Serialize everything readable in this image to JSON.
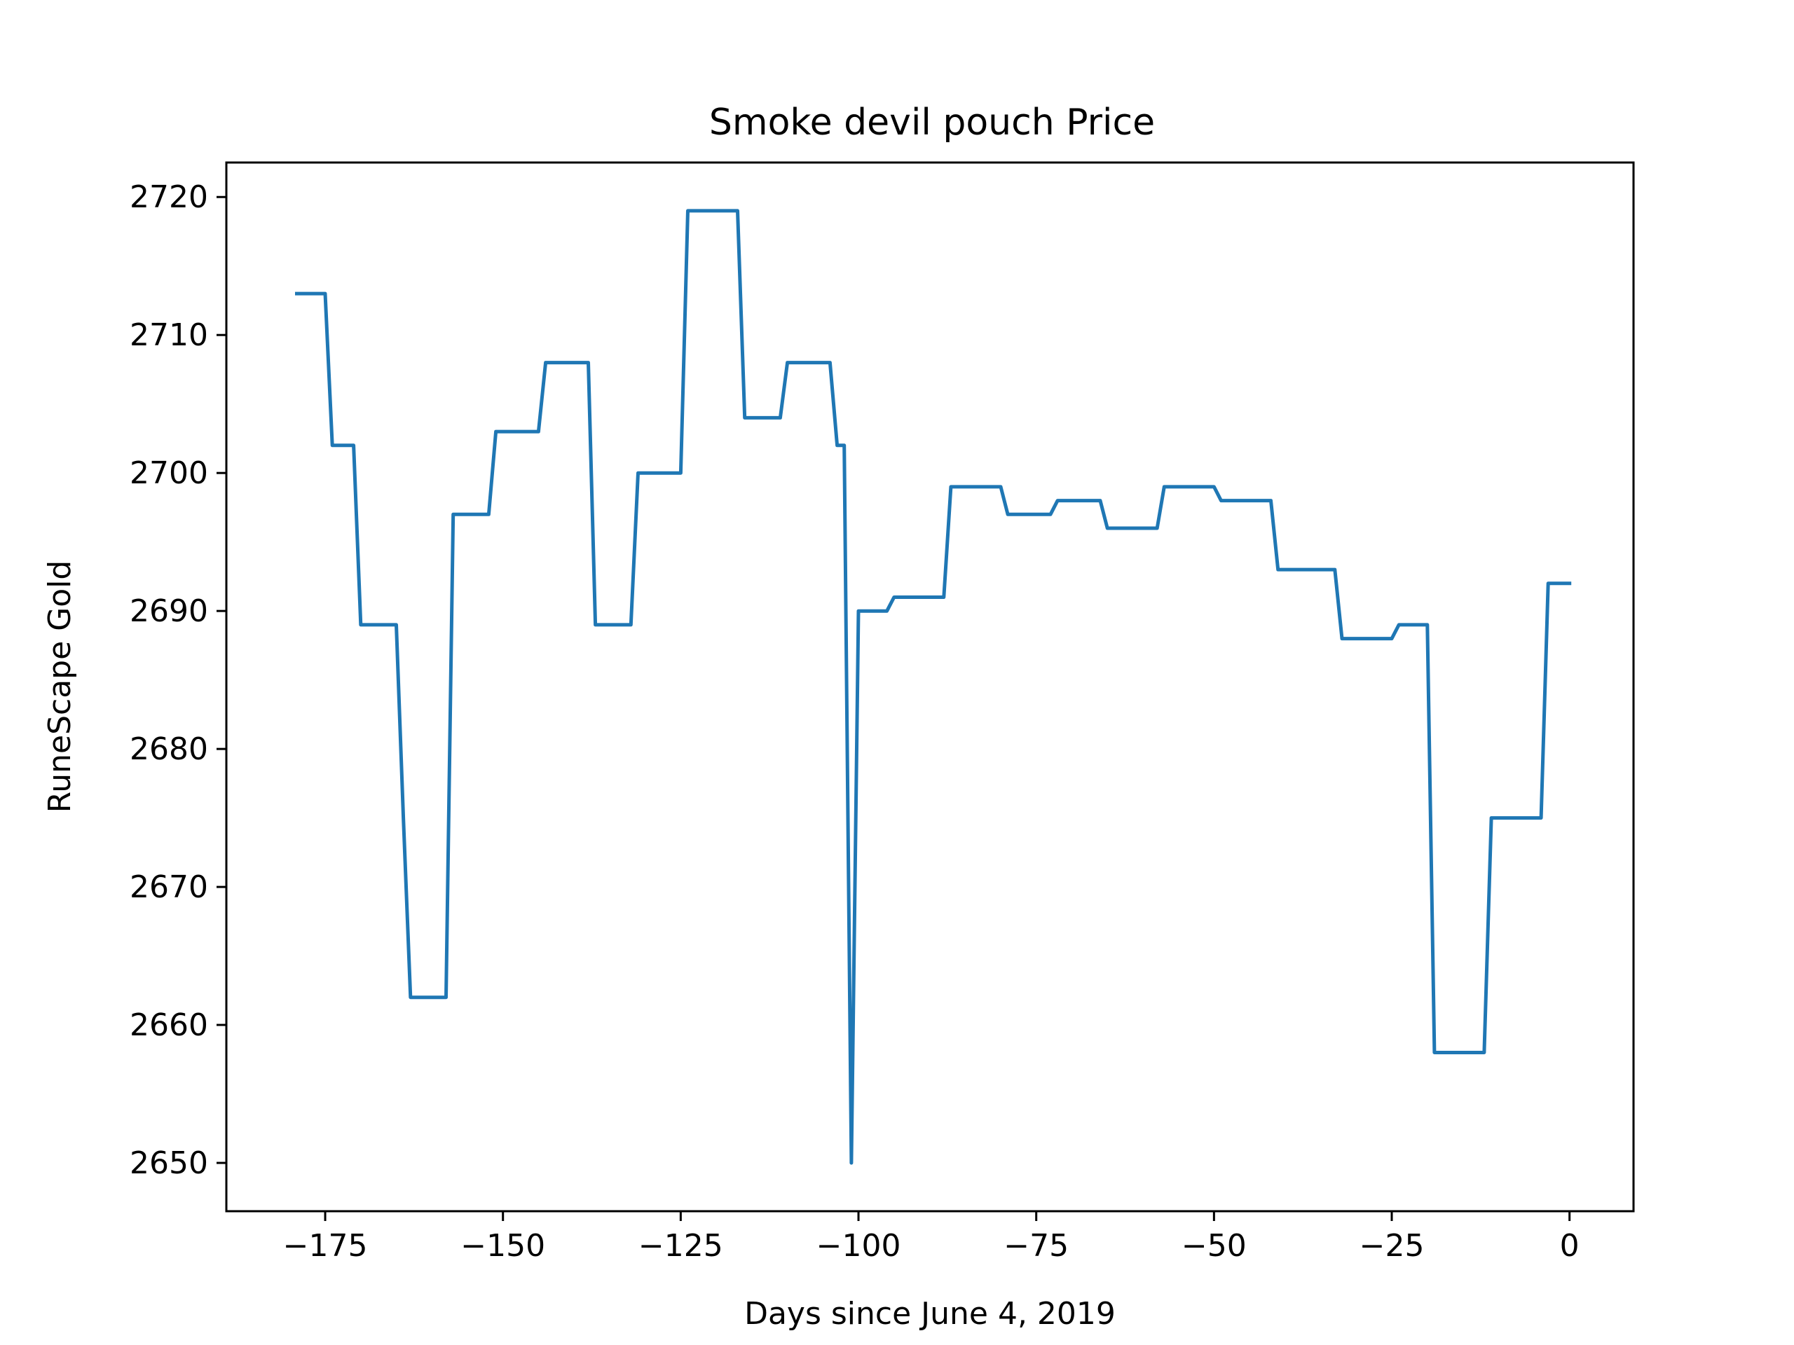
{
  "chart_data": {
    "type": "line",
    "title": "Smoke devil pouch Price",
    "xlabel": "Days since June 4, 2019",
    "ylabel": "RuneScape Gold",
    "xlim": [
      -188.9,
      9.0
    ],
    "ylim": [
      2646.5,
      2722.5
    ],
    "xticks": [
      -175,
      -150,
      -125,
      -100,
      -75,
      -50,
      -25,
      0
    ],
    "xtick_labels": [
      "−175",
      "−150",
      "−125",
      "−100",
      "−75",
      "−50",
      "−25",
      "0"
    ],
    "yticks": [
      2650,
      2660,
      2670,
      2680,
      2690,
      2700,
      2710,
      2720
    ],
    "ytick_labels": [
      "2650",
      "2660",
      "2670",
      "2680",
      "2690",
      "2700",
      "2710",
      "2720"
    ],
    "grid": false,
    "legend": false,
    "series": [
      {
        "color": "#1f77b4",
        "x": [
          -179,
          -175,
          -174,
          -171,
          -170,
          -165,
          -164,
          -163,
          -158,
          -157,
          -152,
          -151,
          -145,
          -144,
          -138,
          -137,
          -132,
          -131,
          -125,
          -124,
          -117,
          -116,
          -111,
          -110,
          -104,
          -103,
          -102,
          -101,
          -100,
          -96,
          -95,
          -88,
          -87,
          -80,
          -79,
          -73,
          -72,
          -66,
          -65,
          -58,
          -57,
          -50,
          -49,
          -42,
          -41,
          -33,
          -32,
          -25,
          -24,
          -20,
          -19,
          -12,
          -11,
          -4,
          -3,
          0
        ],
        "y": [
          2713,
          2713,
          2702,
          2702,
          2689,
          2689,
          2675,
          2662,
          2662,
          2697,
          2697,
          2703,
          2703,
          2708,
          2708,
          2689,
          2689,
          2700,
          2700,
          2719,
          2719,
          2704,
          2704,
          2708,
          2708,
          2702,
          2702,
          2650,
          2690,
          2690,
          2691,
          2691,
          2699,
          2699,
          2697,
          2697,
          2698,
          2698,
          2696,
          2696,
          2699,
          2699,
          2698,
          2698,
          2693,
          2693,
          2688,
          2688,
          2689,
          2689,
          2658,
          2658,
          2675,
          2675,
          2692,
          2692
        ]
      }
    ]
  }
}
